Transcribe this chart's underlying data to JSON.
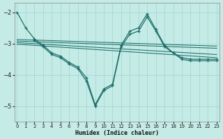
{
  "background_color": "#c5ebe6",
  "grid_color": "#a0d4ce",
  "line_color": "#1e6e6a",
  "xlabel": "Humidex (Indice chaleur)",
  "ylim": [
    -5.5,
    -1.7
  ],
  "xlim": [
    -0.3,
    23.3
  ],
  "yticks": [
    -5,
    -4,
    -3,
    -2
  ],
  "xticks": [
    0,
    1,
    2,
    3,
    4,
    5,
    6,
    7,
    8,
    9,
    10,
    11,
    12,
    13,
    14,
    15,
    16,
    17,
    18,
    19,
    20,
    21,
    22,
    23
  ],
  "curve1_x": [
    0,
    1,
    2,
    3,
    4,
    5,
    6,
    7,
    8,
    9,
    10,
    11,
    12,
    13,
    14,
    15,
    16,
    17,
    18,
    19,
    20,
    21,
    22,
    23
  ],
  "curve1_y": [
    -2.0,
    -2.5,
    -2.85,
    -3.05,
    -3.3,
    -3.4,
    -3.6,
    -3.75,
    -4.1,
    -4.95,
    -4.45,
    -4.3,
    -3.05,
    -2.6,
    -2.5,
    -2.05,
    -2.55,
    -3.05,
    -3.3,
    -3.45,
    -3.5,
    -3.5,
    -3.5,
    -3.5
  ],
  "curve2_x": [
    2,
    3,
    4,
    5,
    6,
    7,
    8,
    9,
    10,
    11,
    12,
    13,
    14,
    15,
    16,
    17,
    18,
    19,
    20,
    21,
    22,
    23
  ],
  "curve2_y": [
    -2.9,
    -3.1,
    -3.35,
    -3.45,
    -3.65,
    -3.8,
    -4.2,
    -5.0,
    -4.5,
    -4.35,
    -3.1,
    -2.7,
    -2.6,
    -2.15,
    -2.6,
    -3.1,
    -3.3,
    -3.5,
    -3.55,
    -3.55,
    -3.55,
    -3.55
  ],
  "trend_lines": [
    {
      "x": [
        0,
        23
      ],
      "y": [
        -2.87,
        -3.08
      ]
    },
    {
      "x": [
        0,
        23
      ],
      "y": [
        -2.92,
        -3.15
      ]
    },
    {
      "x": [
        0,
        23
      ],
      "y": [
        -2.97,
        -3.35
      ]
    },
    {
      "x": [
        0,
        23
      ],
      "y": [
        -3.02,
        -3.45
      ]
    }
  ]
}
